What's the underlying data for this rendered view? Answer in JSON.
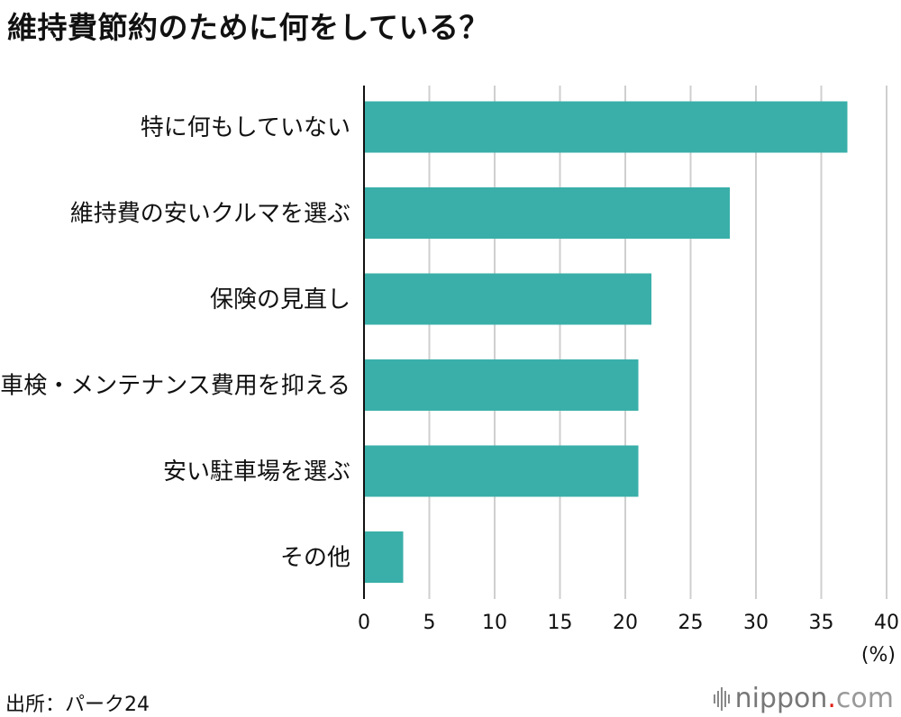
{
  "title": "維持費節約のために何をしている？",
  "source": "出所：パーク24",
  "logo": {
    "name": "nippon",
    "dot": ".",
    "suffix": "com",
    "icon": "sound-wave-icon"
  },
  "colors": {
    "bar": "#3aafa9",
    "grid": "#cfcfcf",
    "axis": "#111111",
    "logo_dot": "#e2231a"
  },
  "chart_data": {
    "type": "bar",
    "orientation": "horizontal",
    "title": "維持費節約のために何をしている？",
    "categories": [
      "特に何もしていない",
      "維持費の安いクルマを選ぶ",
      "保険の見直し",
      "車検・メンテナンス費用を抑える",
      "安い駐車場を選ぶ",
      "その他"
    ],
    "values": [
      37,
      28,
      22,
      21,
      21,
      3
    ],
    "xlim": [
      0,
      40
    ],
    "xticks": [
      0,
      5,
      10,
      15,
      20,
      25,
      30,
      35,
      40
    ],
    "xlabel": "(%)",
    "ylabel": "",
    "grid": true
  }
}
